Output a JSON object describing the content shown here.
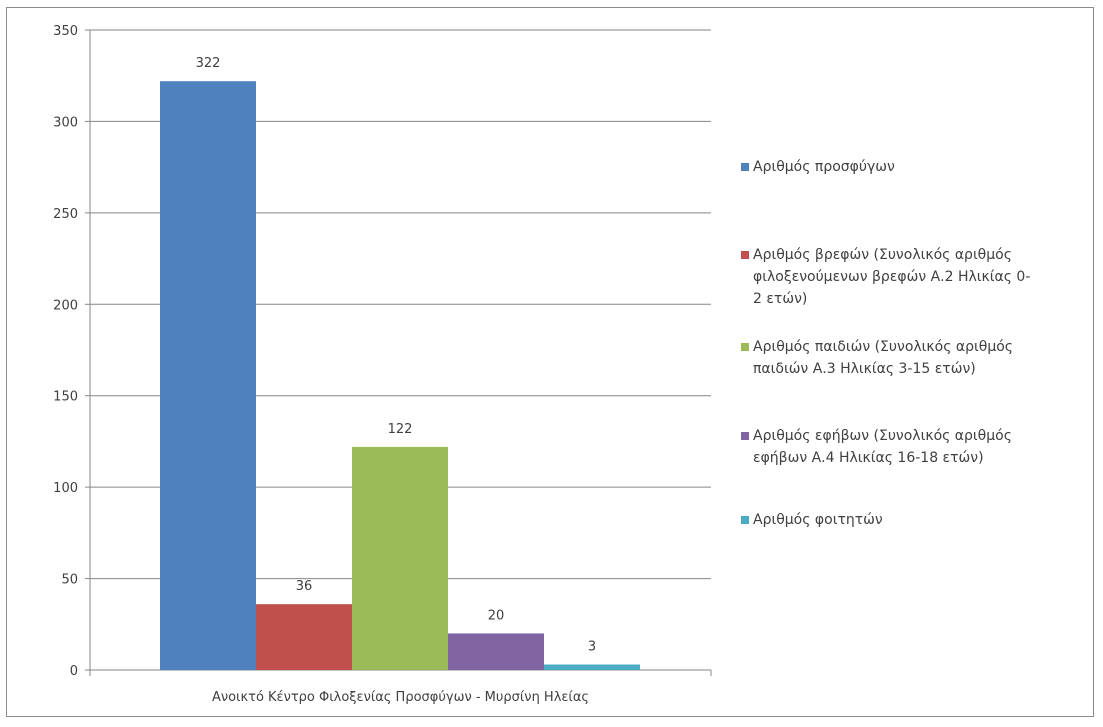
{
  "chart_data": {
    "type": "bar",
    "categories": [
      "Ανοικτό Κέντρο Φιλοξενίας Προσφύγων - Μυρσίνη Ηλείας"
    ],
    "series": [
      {
        "name": "Αριθμός προσφύγων",
        "values": [
          322
        ],
        "color": "#4f81bd"
      },
      {
        "name": "Αριθμός βρεφών (Συνολικός αριθμός φιλοξενούμενων βρεφών Α.2 Ηλικίας 0-2 ετών)",
        "values": [
          36
        ],
        "color": "#c0504d"
      },
      {
        "name": "Αριθμός παιδιών (Συνολικός αριθμός παιδιών Α.3 Ηλικίας 3-15 ετών)",
        "values": [
          122
        ],
        "color": "#9bbb59"
      },
      {
        "name": "Αριθμός εφήβων (Συνολικός αριθμός εφήβων Α.4 Ηλικίας 16-18 ετών)",
        "values": [
          20
        ],
        "color": "#8064a2"
      },
      {
        "name": "Αριθμός φοιτητών",
        "values": [
          3
        ],
        "color": "#4bacc6"
      }
    ],
    "legend_lines": [
      [
        "Αριθμός προσφύγων"
      ],
      [
        "Αριθμός βρεφών (Συνολικός αριθμός",
        "φιλοξενούμενων βρεφών Α.2 Ηλικίας 0-",
        "2 ετών)"
      ],
      [
        "Αριθμός παιδιών (Συνολικός αριθμός",
        "παιδιών Α.3 Ηλικίας 3-15 ετών)"
      ],
      [
        "Αριθμός εφήβων (Συνολικός αριθμός",
        "εφήβων Α.4 Ηλικίας 16-18 ετών)"
      ],
      [
        "Αριθμός φοιτητών"
      ]
    ],
    "yticks": [
      "0",
      "50",
      "100",
      "150",
      "200",
      "250",
      "300",
      "350"
    ],
    "ylim": [
      0,
      350
    ],
    "grid": true,
    "legend_position": "right",
    "title": "",
    "xlabel": "",
    "ylabel": ""
  }
}
